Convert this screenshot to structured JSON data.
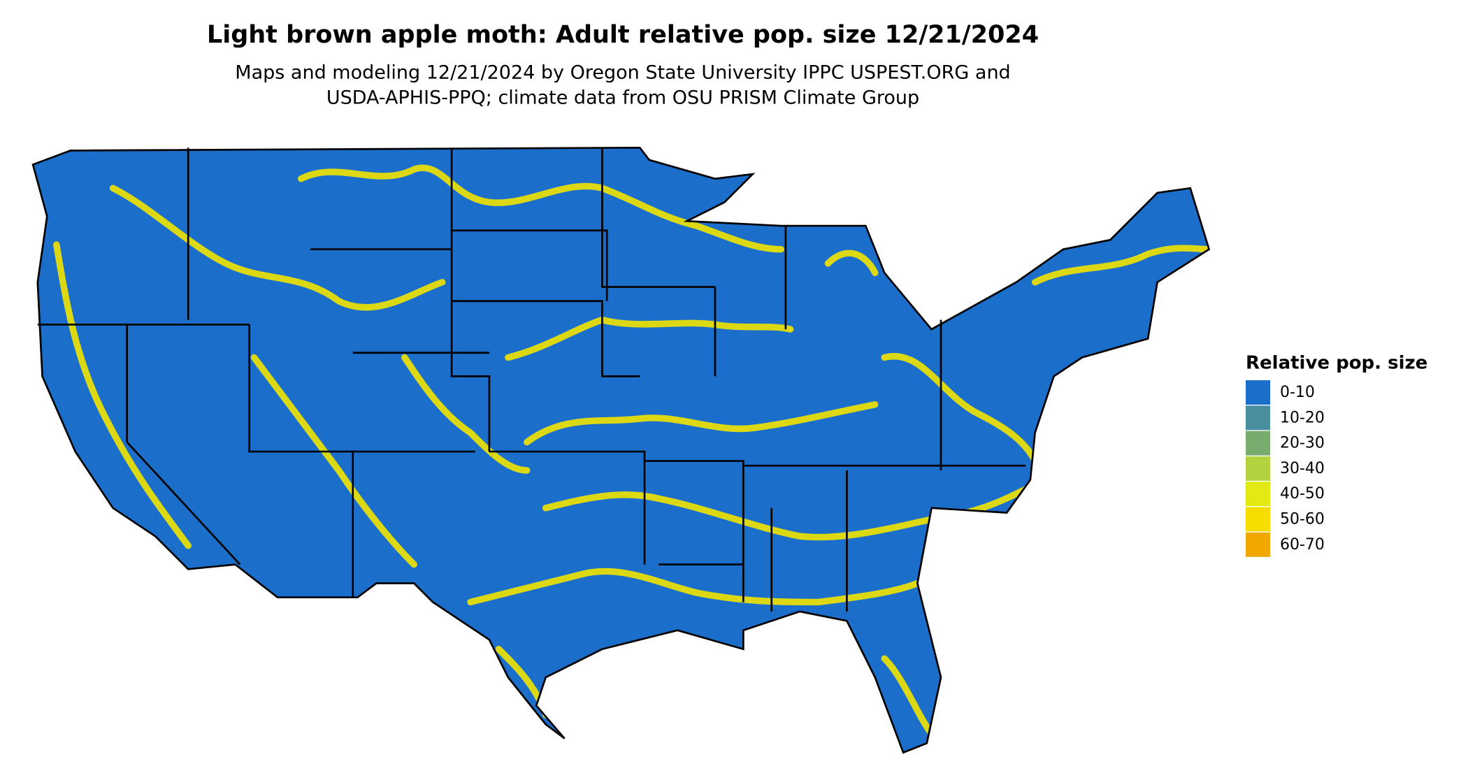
{
  "header": {
    "title": "Light brown apple moth: Adult relative pop. size 12/21/2024",
    "subtitle": [
      "Maps and modeling 12/21/2024 by Oregon State University IPPC USPEST.ORG and",
      "USDA-APHIS-PPQ; climate data from OSU PRISM Climate Group"
    ]
  },
  "legend": {
    "title": "Relative pop. size",
    "items": [
      {
        "label": "0-10",
        "color": "#1b6fcb"
      },
      {
        "label": "10-20",
        "color": "#4a8fa0"
      },
      {
        "label": "20-30",
        "color": "#78ab6e"
      },
      {
        "label": "30-40",
        "color": "#b2d23f"
      },
      {
        "label": "40-50",
        "color": "#e3ea13"
      },
      {
        "label": "50-60",
        "color": "#f6dd00"
      },
      {
        "label": "60-70",
        "color": "#f0a800"
      }
    ]
  }
}
